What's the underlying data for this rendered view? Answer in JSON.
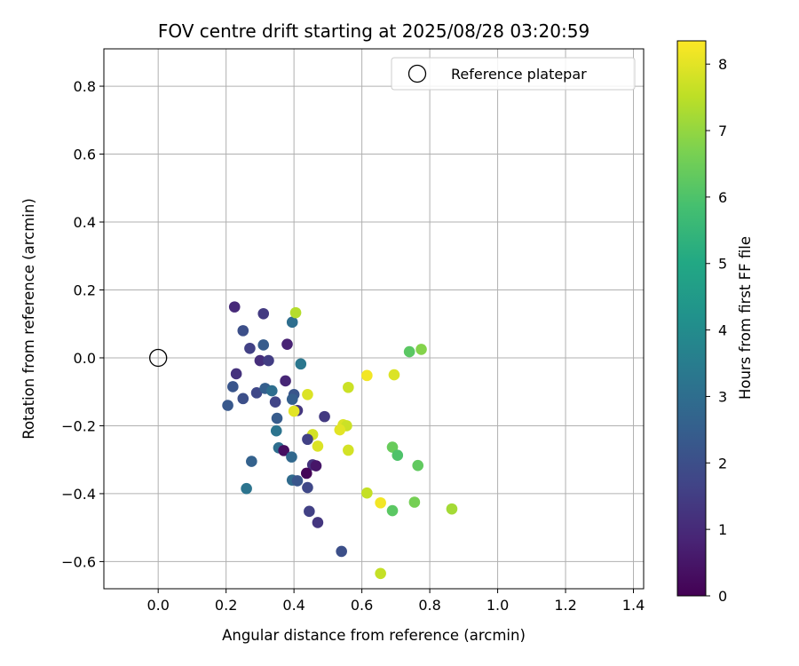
{
  "chart_data": {
    "type": "scatter",
    "title": "FOV centre drift starting at 2025/08/28 03:20:59",
    "xlabel": "Angular distance from reference (arcmin)",
    "ylabel": "Rotation from reference (arcmin)",
    "xlim": [
      -0.16,
      1.43
    ],
    "ylim": [
      -0.68,
      0.91
    ],
    "xticks": [
      "0.0",
      "0.2",
      "0.4",
      "0.6",
      "0.8",
      "1.0",
      "1.2",
      "1.4"
    ],
    "yticks": [
      "−0.6",
      "−0.4",
      "−0.2",
      "0.0",
      "0.2",
      "0.4",
      "0.6",
      "0.8"
    ],
    "grid": true,
    "legend": {
      "position": "upper right",
      "entries": [
        "Reference platepar"
      ]
    },
    "colorbar": {
      "label": "Hours from first FF file",
      "colormap": "viridis",
      "range": [
        0,
        8.35
      ],
      "ticks": [
        "0",
        "1",
        "2",
        "3",
        "4",
        "5",
        "6",
        "7",
        "8"
      ]
    },
    "reference_point": {
      "x": 0.0,
      "y": 0.0,
      "label": "Reference platepar"
    },
    "points": [
      {
        "x": 0.225,
        "y": 0.15,
        "c": 1.0
      },
      {
        "x": 0.31,
        "y": 0.13,
        "c": 1.4
      },
      {
        "x": 0.395,
        "y": 0.105,
        "c": 3.0
      },
      {
        "x": 0.405,
        "y": 0.133,
        "c": 7.4
      },
      {
        "x": 0.25,
        "y": 0.08,
        "c": 2.0
      },
      {
        "x": 0.27,
        "y": 0.028,
        "c": 1.6
      },
      {
        "x": 0.38,
        "y": 0.04,
        "c": 0.8
      },
      {
        "x": 0.31,
        "y": 0.038,
        "c": 2.4
      },
      {
        "x": 0.42,
        "y": -0.018,
        "c": 3.3
      },
      {
        "x": 0.3,
        "y": -0.008,
        "c": 1.1
      },
      {
        "x": 0.325,
        "y": -0.008,
        "c": 1.5
      },
      {
        "x": 0.23,
        "y": -0.047,
        "c": 1.2
      },
      {
        "x": 0.375,
        "y": -0.068,
        "c": 0.9
      },
      {
        "x": 0.22,
        "y": -0.085,
        "c": 2.2
      },
      {
        "x": 0.29,
        "y": -0.103,
        "c": 1.8
      },
      {
        "x": 0.315,
        "y": -0.09,
        "c": 2.5
      },
      {
        "x": 0.335,
        "y": -0.097,
        "c": 3.0
      },
      {
        "x": 0.25,
        "y": -0.12,
        "c": 2.0
      },
      {
        "x": 0.205,
        "y": -0.14,
        "c": 2.3
      },
      {
        "x": 0.345,
        "y": -0.13,
        "c": 1.7
      },
      {
        "x": 0.4,
        "y": -0.108,
        "c": 2.2
      },
      {
        "x": 0.395,
        "y": -0.122,
        "c": 2.5
      },
      {
        "x": 0.44,
        "y": -0.108,
        "c": 7.9
      },
      {
        "x": 0.41,
        "y": -0.155,
        "c": 1.3
      },
      {
        "x": 0.4,
        "y": -0.157,
        "c": 8.0
      },
      {
        "x": 0.56,
        "y": -0.087,
        "c": 7.7
      },
      {
        "x": 0.615,
        "y": -0.052,
        "c": 8.2
      },
      {
        "x": 0.695,
        "y": -0.05,
        "c": 7.9
      },
      {
        "x": 0.74,
        "y": 0.018,
        "c": 6.2
      },
      {
        "x": 0.775,
        "y": 0.025,
        "c": 6.8
      },
      {
        "x": 0.35,
        "y": -0.178,
        "c": 2.4
      },
      {
        "x": 0.49,
        "y": -0.173,
        "c": 1.4
      },
      {
        "x": 0.545,
        "y": -0.197,
        "c": 7.9
      },
      {
        "x": 0.555,
        "y": -0.2,
        "c": 7.7
      },
      {
        "x": 0.535,
        "y": -0.212,
        "c": 8.0
      },
      {
        "x": 0.455,
        "y": -0.226,
        "c": 7.8
      },
      {
        "x": 0.348,
        "y": -0.215,
        "c": 3.2
      },
      {
        "x": 0.44,
        "y": -0.24,
        "c": 1.6
      },
      {
        "x": 0.47,
        "y": -0.26,
        "c": 7.9
      },
      {
        "x": 0.56,
        "y": -0.272,
        "c": 7.8
      },
      {
        "x": 0.355,
        "y": -0.265,
        "c": 3.0
      },
      {
        "x": 0.37,
        "y": -0.273,
        "c": 0.3
      },
      {
        "x": 0.393,
        "y": -0.292,
        "c": 2.8
      },
      {
        "x": 0.275,
        "y": -0.305,
        "c": 2.6
      },
      {
        "x": 0.455,
        "y": -0.315,
        "c": 1.2
      },
      {
        "x": 0.465,
        "y": -0.318,
        "c": 0.5
      },
      {
        "x": 0.437,
        "y": -0.34,
        "c": 0.1
      },
      {
        "x": 0.69,
        "y": -0.263,
        "c": 6.4
      },
      {
        "x": 0.705,
        "y": -0.287,
        "c": 6.0
      },
      {
        "x": 0.765,
        "y": -0.317,
        "c": 6.3
      },
      {
        "x": 0.395,
        "y": -0.36,
        "c": 2.9
      },
      {
        "x": 0.41,
        "y": -0.362,
        "c": 2.2
      },
      {
        "x": 0.26,
        "y": -0.385,
        "c": 3.2
      },
      {
        "x": 0.44,
        "y": -0.382,
        "c": 1.8
      },
      {
        "x": 0.615,
        "y": -0.398,
        "c": 7.6
      },
      {
        "x": 0.655,
        "y": -0.427,
        "c": 8.2
      },
      {
        "x": 0.755,
        "y": -0.425,
        "c": 6.6
      },
      {
        "x": 0.69,
        "y": -0.45,
        "c": 6.2
      },
      {
        "x": 0.865,
        "y": -0.445,
        "c": 7.2
      },
      {
        "x": 0.445,
        "y": -0.452,
        "c": 1.6
      },
      {
        "x": 0.47,
        "y": -0.485,
        "c": 1.3
      },
      {
        "x": 0.54,
        "y": -0.57,
        "c": 2.0
      },
      {
        "x": 0.655,
        "y": -0.635,
        "c": 7.6
      }
    ]
  }
}
